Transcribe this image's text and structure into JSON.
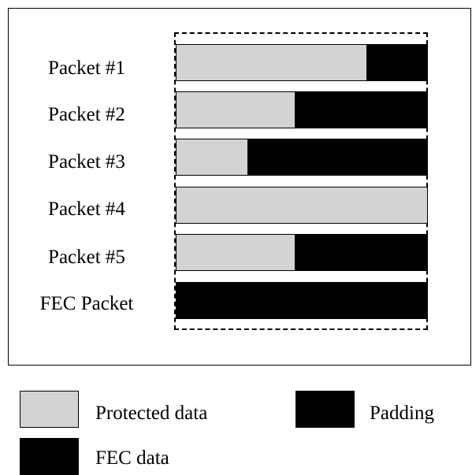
{
  "colors": {
    "protected": "#d3d3d3",
    "fill": "#000000"
  },
  "packets": [
    {
      "label": "Packet #1",
      "protected_fraction": 0.76
    },
    {
      "label": "Packet #2",
      "protected_fraction": 0.475
    },
    {
      "label": "Packet #3",
      "protected_fraction": 0.285
    },
    {
      "label": "Packet #4",
      "protected_fraction": 1.0
    },
    {
      "label": "Packet #5",
      "protected_fraction": 0.475
    },
    {
      "label": "FEC Packet",
      "protected_fraction": 0.0
    }
  ],
  "legend": {
    "protected": {
      "label": "Protected data"
    },
    "padding": {
      "label": "Padding"
    },
    "fec": {
      "label": "FEC data"
    }
  }
}
